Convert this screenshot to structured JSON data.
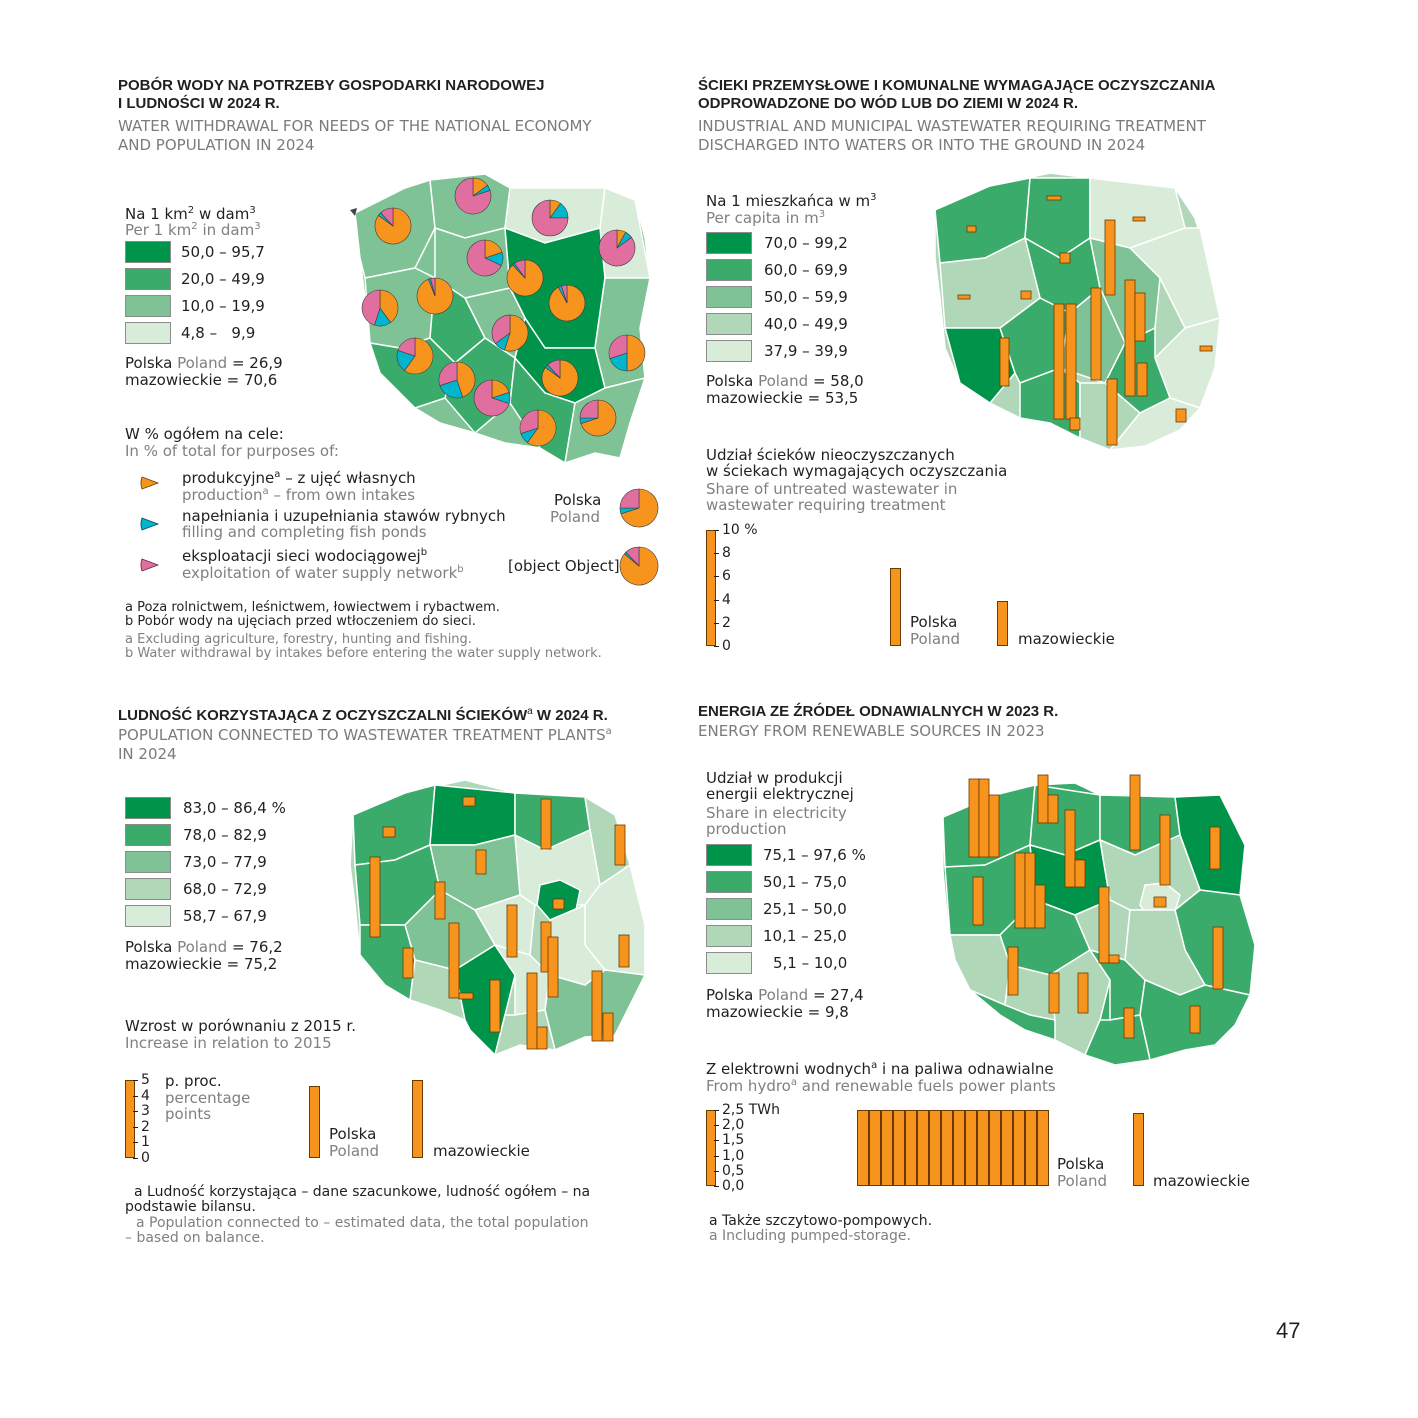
{
  "colors": {
    "g1": "#00934a",
    "g2": "#3aab6b",
    "g3": "#7fc295",
    "g4": "#b0d8b8",
    "g5": "#d8ecd9",
    "orange": "#f7941d",
    "cyan": "#00b5cc",
    "pink": "#e06fa0"
  },
  "p1": {
    "title_pl": [
      "POBÓR WODY NA POTRZEBY GOSPODARKI NARODOWEJ",
      "I LUDNOŚCI W 2024 R."
    ],
    "title_en": [
      "WATER WITHDRAWAL FOR NEEDS OF THE NATIONAL ECONOMY",
      "AND POPULATION IN 2024"
    ],
    "legend_pl": "Na 1 km² w dam³",
    "legend_en": "Per 1 km² in dam³",
    "classes": [
      "50,0 – 95,7",
      "20,0 – 49,9",
      "10,0 – 19,9",
      "4,8 –   9,9"
    ],
    "polska_pl": "Polska",
    "polska_en": "Poland",
    "polska_val": "= 26,9",
    "maz_line": "mazowieckie = 70,6",
    "purpose_pl": "W % ogółem na cele:",
    "purpose_en": "In % of total for purposes of:",
    "items": [
      {
        "pl": "produkcyjne",
        "pl_sup": "a",
        "pl_rest": " – z ujęć własnych",
        "en": "production",
        "en_sup": "a",
        "en_rest": " – from own intakes",
        "color": "orange"
      },
      {
        "pl": "napełniania i uzupełniania stawów rybnych",
        "pl_sup": "",
        "pl_rest": "",
        "en": "filling and completing fish ponds",
        "en_sup": "",
        "en_rest": "",
        "color": "cyan"
      },
      {
        "pl": "eksploatacji sieci wodociągowej",
        "pl_sup": "b",
        "pl_rest": "",
        "en": "exploitation of water supply network",
        "en_sup": "b",
        "en_rest": "",
        "color": "pink"
      }
    ],
    "pie_polska_pl": "Polska",
    "pie_polska_en": "Poland",
    "pie_maz": {
      "production": 86,
      "fish": 2,
      "network": 12
    },
    "pie_polska": {
      "production": 70,
      "fish": 5,
      "network": 25
    },
    "notes_pl": [
      "a Poza rolnictwem, leśnictwem, łowiectwem i rybactwem.",
      "b Pobór wody na ujęciach przed wtłoczeniem do sieci."
    ],
    "notes_en": [
      "a Excluding agriculture, forestry, hunting and fishing.",
      "b Water withdrawal by intakes before entering the water supply network."
    ]
  },
  "p2": {
    "title_pl": [
      "ŚCIEKI PRZEMYSŁOWE I KOMUNALNE WYMAGAJĄCE OCZYSZCZANIA",
      "ODPROWADZONE DO WÓD LUB DO ZIEMI W 2024 R."
    ],
    "title_en": [
      "INDUSTRIAL AND MUNICIPAL WASTEWATER REQUIRING TREATMENT",
      "DISCHARGED INTO WATERS OR INTO THE GROUND IN 2024"
    ],
    "legend_pl": "Na 1 mieszkańca w m³",
    "legend_en": "Per capita in m³",
    "classes": [
      "70,0 – 99,2",
      "60,0 – 69,9",
      "50,0 – 59,9",
      "40,0 – 49,9",
      "37,9 – 39,9"
    ],
    "polska_pl": "Polska",
    "polska_en": "Poland",
    "polska_val": "= 58,0",
    "maz_line": "mazowieckie = 53,5",
    "share_pl": [
      "Udział ścieków nieoczyszczanych",
      "w ściekach wymagających oczyszczania"
    ],
    "share_en": [
      "Share of untreated wastewater in",
      "wastewater requiring treatment"
    ],
    "ticks": [
      "10 %",
      "8",
      "6",
      "4",
      "2",
      "0"
    ],
    "bar_polska": 6.7,
    "bar_maz": 3.9,
    "bar_polska_pl": "Polska",
    "bar_polska_en": "Poland",
    "bar_maz_label": "mazowieckie"
  },
  "p3": {
    "title_pl": "LUDNOŚĆ KORZYSTAJĄCA Z OCZYSZCZALNI ŚCIEKÓW",
    "title_sup": "a",
    "title_tail": " W 2024 R.",
    "title_en": "POPULATION CONNECTED TO WASTEWATER TREATMENT PLANTS",
    "title_en_sup": "a",
    "title_en2": "IN 2024",
    "classes": [
      "83,0 – 86,4 %",
      "78,0 – 82,9",
      "73,0 – 77,9",
      "68,0 – 72,9",
      "58,7 – 67,9"
    ],
    "polska_pl": "Polska",
    "polska_en": "Poland",
    "polska_val": "= 76,2",
    "maz_line": "mazowieckie = 75,2",
    "inc_pl": "Wzrost w porównaniu z 2015 r.",
    "inc_en": "Increase in relation to 2015",
    "ticks": [
      "5",
      "4",
      "3",
      "2",
      "1",
      "0"
    ],
    "unit_pl": "p. proc.",
    "unit_en": [
      "percentage",
      "points"
    ],
    "bar_polska": 4.6,
    "bar_maz": 5.0,
    "bar_polska_pl": "Polska",
    "bar_polska_en": "Poland",
    "bar_maz_label": "mazowieckie",
    "notes_pl": [
      "a Ludność korzystająca – dane szacunkowe, ludność ogółem – na",
      "podstawie bilansu."
    ],
    "notes_en": [
      "a Population connected to – estimated data, the total population",
      "– based on balance."
    ]
  },
  "p4": {
    "title_pl": "ENERGIA ZE ŹRÓDEŁ ODNAWIALNYCH W 2023 R.",
    "title_en": "ENERGY FROM RENEWABLE SOURCES IN 2023",
    "legend_pl": [
      "Udział w produkcji",
      "energii elektrycznej"
    ],
    "legend_en": [
      "Share in electricity",
      "production"
    ],
    "classes": [
      "75,1 – 97,6 %",
      "50,1 – 75,0",
      "25,1 – 50,0",
      "10,1 – 25,0",
      "5,1 – 10,0"
    ],
    "polska_pl": "Polska",
    "polska_en": "Poland",
    "polska_val": "= 27,4",
    "maz_line": "mazowieckie = 9,8",
    "hydro_pl": "Z elektrowni wodnych",
    "hydro_pl_sup": "a",
    "hydro_pl_rest": " i na paliwa odnawialne",
    "hydro_en": "From hydro",
    "hydro_en_sup": "a",
    "hydro_en_rest": " and renewable fuels power plants",
    "ticks": [
      "2,5 TWh",
      "2,0",
      "1,5",
      "1,0",
      "0,5",
      "0,0"
    ],
    "bar_polska_pl": "Polska",
    "bar_polska_en": "Poland",
    "bar_maz_label": "mazowieckie",
    "bar_maz": 2.4,
    "note_pl": "a Także szczytowo-pompowych.",
    "note_en": "a Including pumped-storage."
  },
  "page_number": "47"
}
